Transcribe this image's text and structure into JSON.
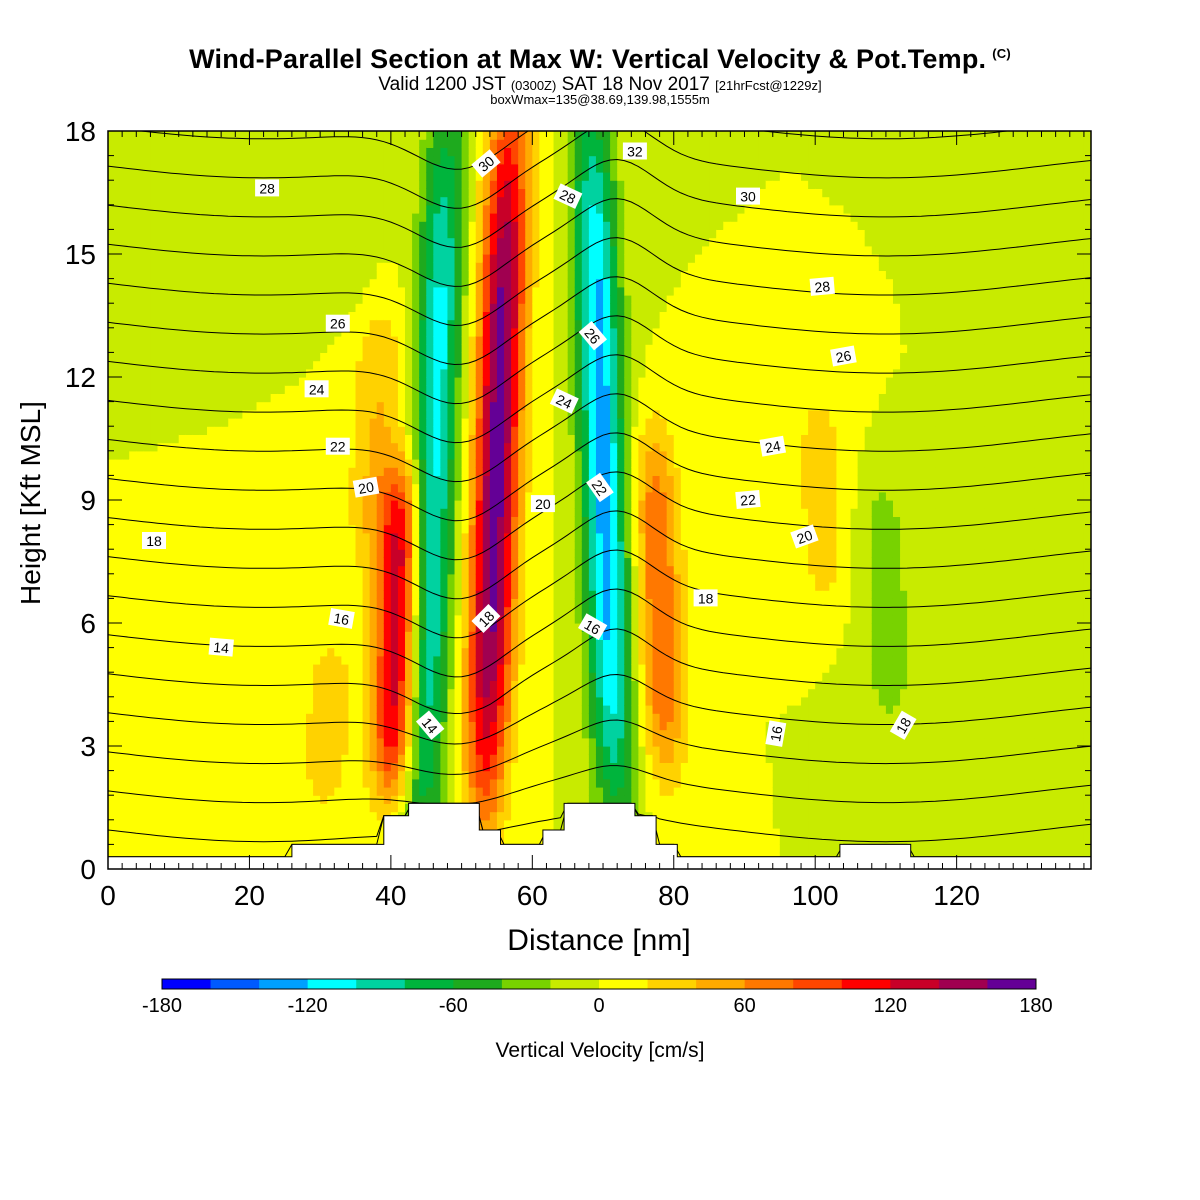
{
  "titles": {
    "main": "Wind-Parallel Section at Max W: Vertical Velocity & Pot.Temp.",
    "copyright": "(C)",
    "valid_prefix": "Valid 1200 JST",
    "valid_utc": "(0300Z)",
    "valid_date": "SAT 18 Nov 2017",
    "valid_fcst": "[21hrFcst@1229z]",
    "box": "boxWmax=135@38.69,139.98,1555m"
  },
  "chart_data": {
    "type": "heatmap",
    "title": "Wind-Parallel Section at Max W: Vertical Velocity & Pot.Temp.",
    "xlabel": "Distance [nm]",
    "ylabel": "Height [Kft MSL]",
    "xlim": [
      0,
      139
    ],
    "ylim": [
      0,
      18
    ],
    "x_ticks": [
      0,
      20,
      40,
      60,
      80,
      100,
      120
    ],
    "y_ticks": [
      0,
      3,
      6,
      9,
      12,
      15,
      18
    ],
    "colorbar": {
      "label": "Vertical Velocity [cm/s]",
      "levels": [
        -180,
        -160,
        -140,
        -120,
        -100,
        -80,
        -60,
        -40,
        -20,
        0,
        20,
        40,
        60,
        80,
        100,
        120,
        140,
        160,
        180
      ],
      "tick_labels": [
        -180,
        -120,
        -60,
        0,
        60,
        120,
        180
      ],
      "colors": [
        "#0000ff",
        "#005aff",
        "#00a0ff",
        "#00ffff",
        "#00d2a0",
        "#00b43c",
        "#1eaa1e",
        "#78d200",
        "#c8eb00",
        "#ffff00",
        "#ffd200",
        "#ffaa00",
        "#ff7800",
        "#ff4600",
        "#ff0000",
        "#c80028",
        "#a00050",
        "#640096"
      ]
    },
    "vertical_velocity_features": [
      {
        "x_center": 41,
        "z_bottom": 2.5,
        "z_top": 9,
        "peak": 140
      },
      {
        "x_center": 46,
        "z_bottom": 1,
        "z_top": 18,
        "peak": -110
      },
      {
        "x_center": 55,
        "z_bottom": 2,
        "z_top": 18,
        "peak": 170
      },
      {
        "x_center": 70,
        "z_bottom": 2,
        "z_top": 18,
        "peak": -130
      },
      {
        "x_center": 78,
        "z_bottom": 3,
        "z_top": 10,
        "peak": 80
      },
      {
        "x_center": 38,
        "z_bottom": 8,
        "z_top": 13,
        "peak": 40
      },
      {
        "x_center": 31,
        "z_bottom": 2,
        "z_top": 5,
        "peak": 30
      },
      {
        "x_center": 101,
        "z_bottom": 7,
        "z_top": 11,
        "peak": 30
      },
      {
        "x_center": 110,
        "z_bottom": 4,
        "z_top": 9,
        "peak": -30
      },
      {
        "x_center": 34,
        "z_bottom": 14,
        "z_top": 18,
        "peak": -12
      },
      {
        "x_center": 126,
        "z_bottom": 1,
        "z_top": 10,
        "peak": -15
      },
      {
        "x_center": 136,
        "z_bottom": 1,
        "z_top": 18,
        "peak": -15
      }
    ],
    "theta_contours": {
      "levels": [
        13,
        14,
        15,
        16,
        17,
        18,
        19,
        20,
        21,
        22,
        23,
        24,
        25,
        26,
        27,
        28,
        29,
        30,
        31,
        32,
        33
      ],
      "labels": [
        {
          "text": "28",
          "x": 22.5,
          "y": 16.6,
          "angle": 0
        },
        {
          "text": "26",
          "x": 32.5,
          "y": 13.3,
          "angle": 0
        },
        {
          "text": "24",
          "x": 29.5,
          "y": 11.7,
          "angle": 0
        },
        {
          "text": "22",
          "x": 32.5,
          "y": 10.3,
          "angle": 0
        },
        {
          "text": "20",
          "x": 36.5,
          "y": 9.3,
          "angle": -10
        },
        {
          "text": "18",
          "x": 6.5,
          "y": 8.0,
          "angle": 0
        },
        {
          "text": "16",
          "x": 33,
          "y": 6.1,
          "angle": 10
        },
        {
          "text": "14",
          "x": 16,
          "y": 5.4,
          "angle": 5
        },
        {
          "text": "14",
          "x": 45.5,
          "y": 3.5,
          "angle": 50
        },
        {
          "text": "30",
          "x": 53.5,
          "y": 17.2,
          "angle": -40
        },
        {
          "text": "28",
          "x": 65,
          "y": 16.4,
          "angle": 25
        },
        {
          "text": "26",
          "x": 68.5,
          "y": 13.0,
          "angle": 50
        },
        {
          "text": "24",
          "x": 64.5,
          "y": 11.4,
          "angle": 25
        },
        {
          "text": "22",
          "x": 69.5,
          "y": 9.3,
          "angle": 55
        },
        {
          "text": "20",
          "x": 61.5,
          "y": 8.9,
          "angle": 0
        },
        {
          "text": "18",
          "x": 53.5,
          "y": 6.1,
          "angle": -45
        },
        {
          "text": "16",
          "x": 68.5,
          "y": 5.9,
          "angle": 30
        },
        {
          "text": "32",
          "x": 74.5,
          "y": 17.5,
          "angle": 0
        },
        {
          "text": "30",
          "x": 90.5,
          "y": 16.4,
          "angle": 0
        },
        {
          "text": "28",
          "x": 101,
          "y": 14.2,
          "angle": -5
        },
        {
          "text": "26",
          "x": 104,
          "y": 12.5,
          "angle": -10
        },
        {
          "text": "24",
          "x": 94,
          "y": 10.3,
          "angle": -10
        },
        {
          "text": "22",
          "x": 90.5,
          "y": 9.0,
          "angle": -5
        },
        {
          "text": "20",
          "x": 98.5,
          "y": 8.1,
          "angle": -20
        },
        {
          "text": "18",
          "x": 84.5,
          "y": 6.6,
          "angle": 0
        },
        {
          "text": "16",
          "x": 94.5,
          "y": 3.3,
          "angle": -80
        },
        {
          "text": "18",
          "x": 112.5,
          "y": 3.5,
          "angle": -60
        }
      ]
    },
    "terrain_kft": [
      [
        0,
        0.3
      ],
      [
        26,
        0.3
      ],
      [
        26,
        0.6
      ],
      [
        39,
        0.6
      ],
      [
        39,
        1.3
      ],
      [
        42.5,
        1.3
      ],
      [
        42.5,
        1.6
      ],
      [
        52.5,
        1.6
      ],
      [
        52.5,
        0.95
      ],
      [
        55.5,
        0.95
      ],
      [
        55.5,
        0.6
      ],
      [
        61.5,
        0.6
      ],
      [
        61.5,
        0.95
      ],
      [
        64.5,
        0.95
      ],
      [
        64.5,
        1.6
      ],
      [
        74.5,
        1.6
      ],
      [
        74.5,
        1.3
      ],
      [
        77.5,
        1.3
      ],
      [
        77.5,
        0.6
      ],
      [
        80.5,
        0.6
      ],
      [
        80.5,
        0.3
      ],
      [
        103.5,
        0.3
      ],
      [
        103.5,
        0.6
      ],
      [
        113.5,
        0.6
      ],
      [
        113.5,
        0.3
      ],
      [
        139,
        0.3
      ]
    ]
  }
}
